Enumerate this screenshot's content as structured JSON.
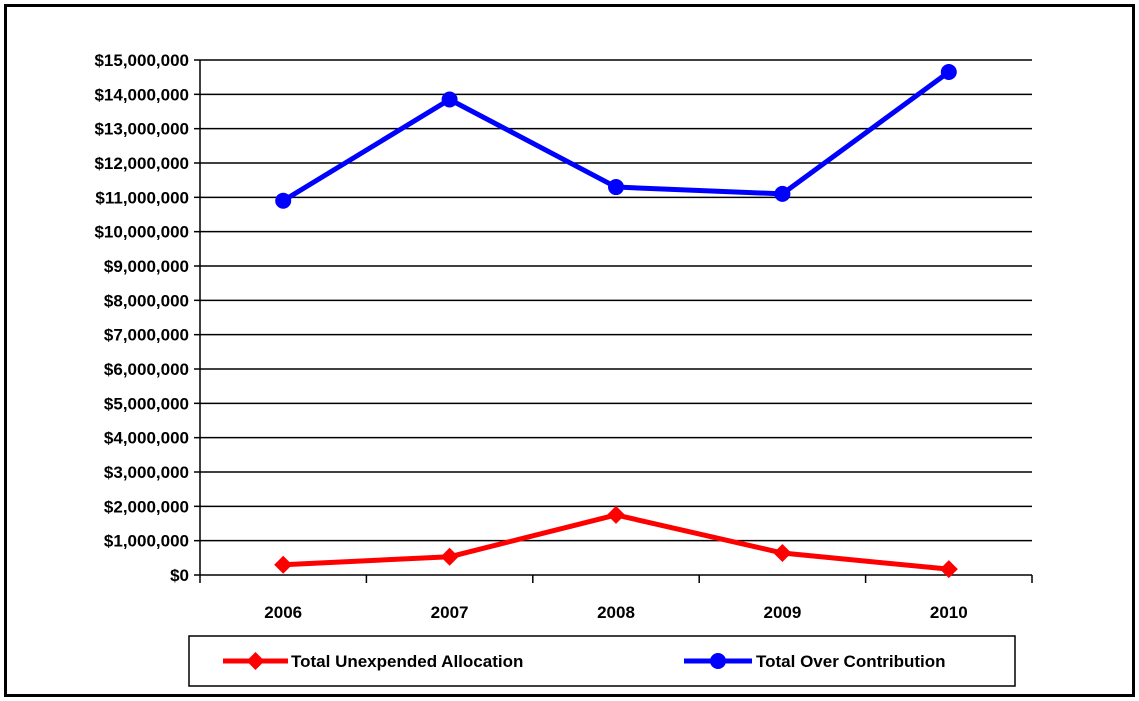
{
  "chart_data": {
    "type": "line",
    "categories": [
      "2006",
      "2007",
      "2008",
      "2009",
      "2010"
    ],
    "ylim": [
      0,
      15000000
    ],
    "yticks": [
      0,
      1000000,
      2000000,
      3000000,
      4000000,
      5000000,
      6000000,
      7000000,
      8000000,
      9000000,
      10000000,
      11000000,
      12000000,
      13000000,
      14000000,
      15000000
    ],
    "ytick_labels": [
      "$0",
      "$1,000,000",
      "$2,000,000",
      "$3,000,000",
      "$4,000,000",
      "$5,000,000",
      "$6,000,000",
      "$7,000,000",
      "$8,000,000",
      "$9,000,000",
      "$10,000,000",
      "$11,000,000",
      "$12,000,000",
      "$13,000,000",
      "$14,000,000",
      "$15,000,000"
    ],
    "grid": "horizontal",
    "legend_position": "bottom",
    "series": [
      {
        "name": "Total Unexpended Allocation",
        "color": "#ff0000",
        "marker": "diamond",
        "values": [
          300000,
          530000,
          1750000,
          640000,
          170000
        ]
      },
      {
        "name": "Total Over Contribution",
        "color": "#0000ff",
        "marker": "circle",
        "values": [
          10900000,
          13850000,
          11300000,
          11100000,
          14650000
        ]
      }
    ]
  }
}
